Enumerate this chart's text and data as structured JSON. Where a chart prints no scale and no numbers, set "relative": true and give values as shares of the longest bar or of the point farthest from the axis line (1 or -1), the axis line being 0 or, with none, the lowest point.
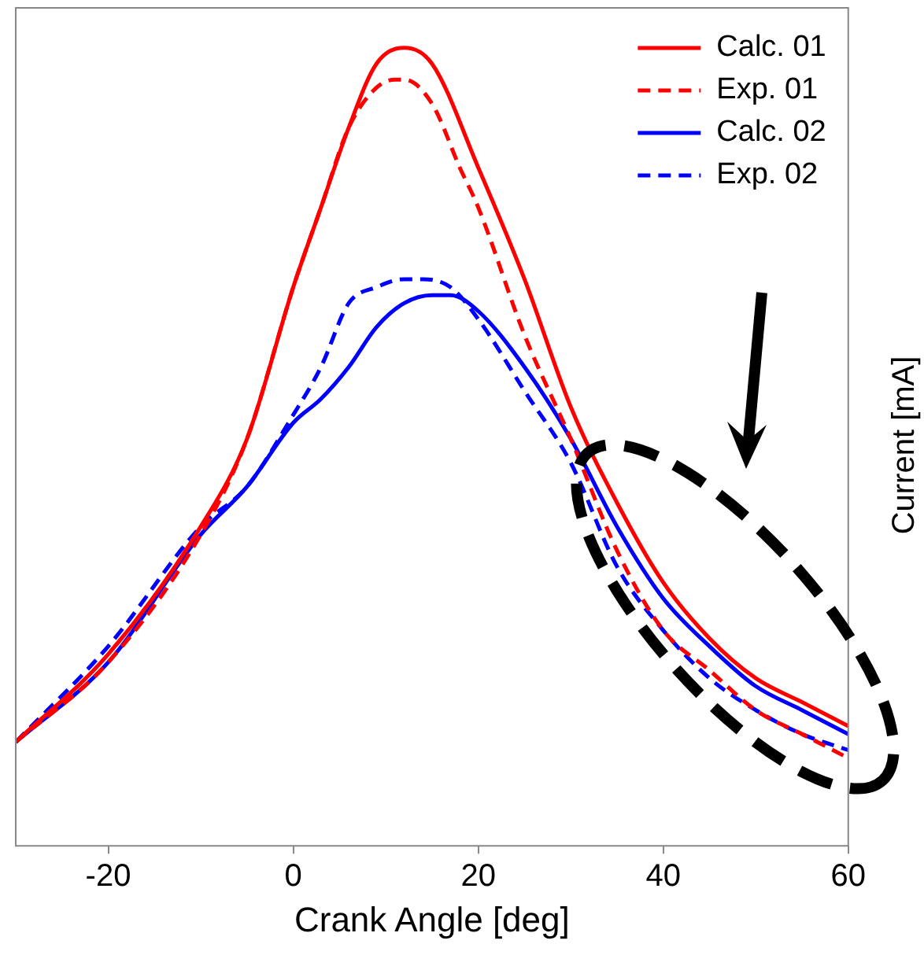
{
  "chart_data": {
    "type": "line",
    "relative": true,
    "xlabel": "Crank Angle [deg]",
    "ylabel": "Current [mA]",
    "xlim": [
      -30,
      60
    ],
    "xticks": [
      -20,
      0,
      20,
      40,
      60
    ],
    "grid": false,
    "legend": "top right",
    "marker": "none",
    "series": [
      {
        "name": "Calc. 01",
        "color": "#ff0000",
        "line_style": "solid",
        "x": [
          -30,
          -20,
          -10,
          -5,
          0,
          3,
          6,
          9,
          12,
          15,
          20,
          25,
          30,
          35,
          40,
          45,
          50,
          55,
          60
        ],
        "values": [
          0.13,
          0.24,
          0.4,
          0.51,
          0.7,
          0.8,
          0.9,
          0.98,
          1.0,
          0.98,
          0.85,
          0.71,
          0.55,
          0.43,
          0.33,
          0.26,
          0.21,
          0.18,
          0.15
        ]
      },
      {
        "name": "Exp. 01",
        "color": "#ff0000",
        "line_style": "dashed",
        "x": [
          -30,
          -20,
          -10,
          -5,
          0,
          3,
          6,
          9,
          11,
          12,
          15,
          18,
          20,
          25,
          30,
          35,
          40,
          45,
          50,
          55,
          60
        ],
        "values": [
          0.13,
          0.23,
          0.39,
          0.51,
          0.7,
          0.8,
          0.9,
          0.95,
          0.96,
          0.96,
          0.93,
          0.85,
          0.8,
          0.64,
          0.51,
          0.37,
          0.27,
          0.22,
          0.17,
          0.14,
          0.11
        ]
      },
      {
        "name": "Calc. 02",
        "color": "#0000ff",
        "line_style": "solid",
        "x": [
          -30,
          -20,
          -10,
          -5,
          0,
          3,
          6,
          9,
          12,
          15,
          17,
          20,
          25,
          30,
          35,
          40,
          45,
          50,
          55,
          60
        ],
        "values": [
          0.13,
          0.23,
          0.39,
          0.45,
          0.53,
          0.56,
          0.6,
          0.65,
          0.68,
          0.69,
          0.69,
          0.67,
          0.6,
          0.51,
          0.4,
          0.31,
          0.25,
          0.2,
          0.17,
          0.14
        ]
      },
      {
        "name": "Exp. 02",
        "color": "#0000ff",
        "line_style": "dashed",
        "x": [
          -30,
          -20,
          -10,
          -5,
          0,
          3,
          6,
          9,
          12,
          14,
          17,
          20,
          25,
          30,
          35,
          40,
          45,
          50,
          55,
          60
        ],
        "values": [
          0.13,
          0.25,
          0.4,
          0.45,
          0.54,
          0.6,
          0.68,
          0.7,
          0.71,
          0.71,
          0.7,
          0.66,
          0.57,
          0.48,
          0.35,
          0.27,
          0.21,
          0.17,
          0.14,
          0.12
        ]
      }
    ]
  }
}
